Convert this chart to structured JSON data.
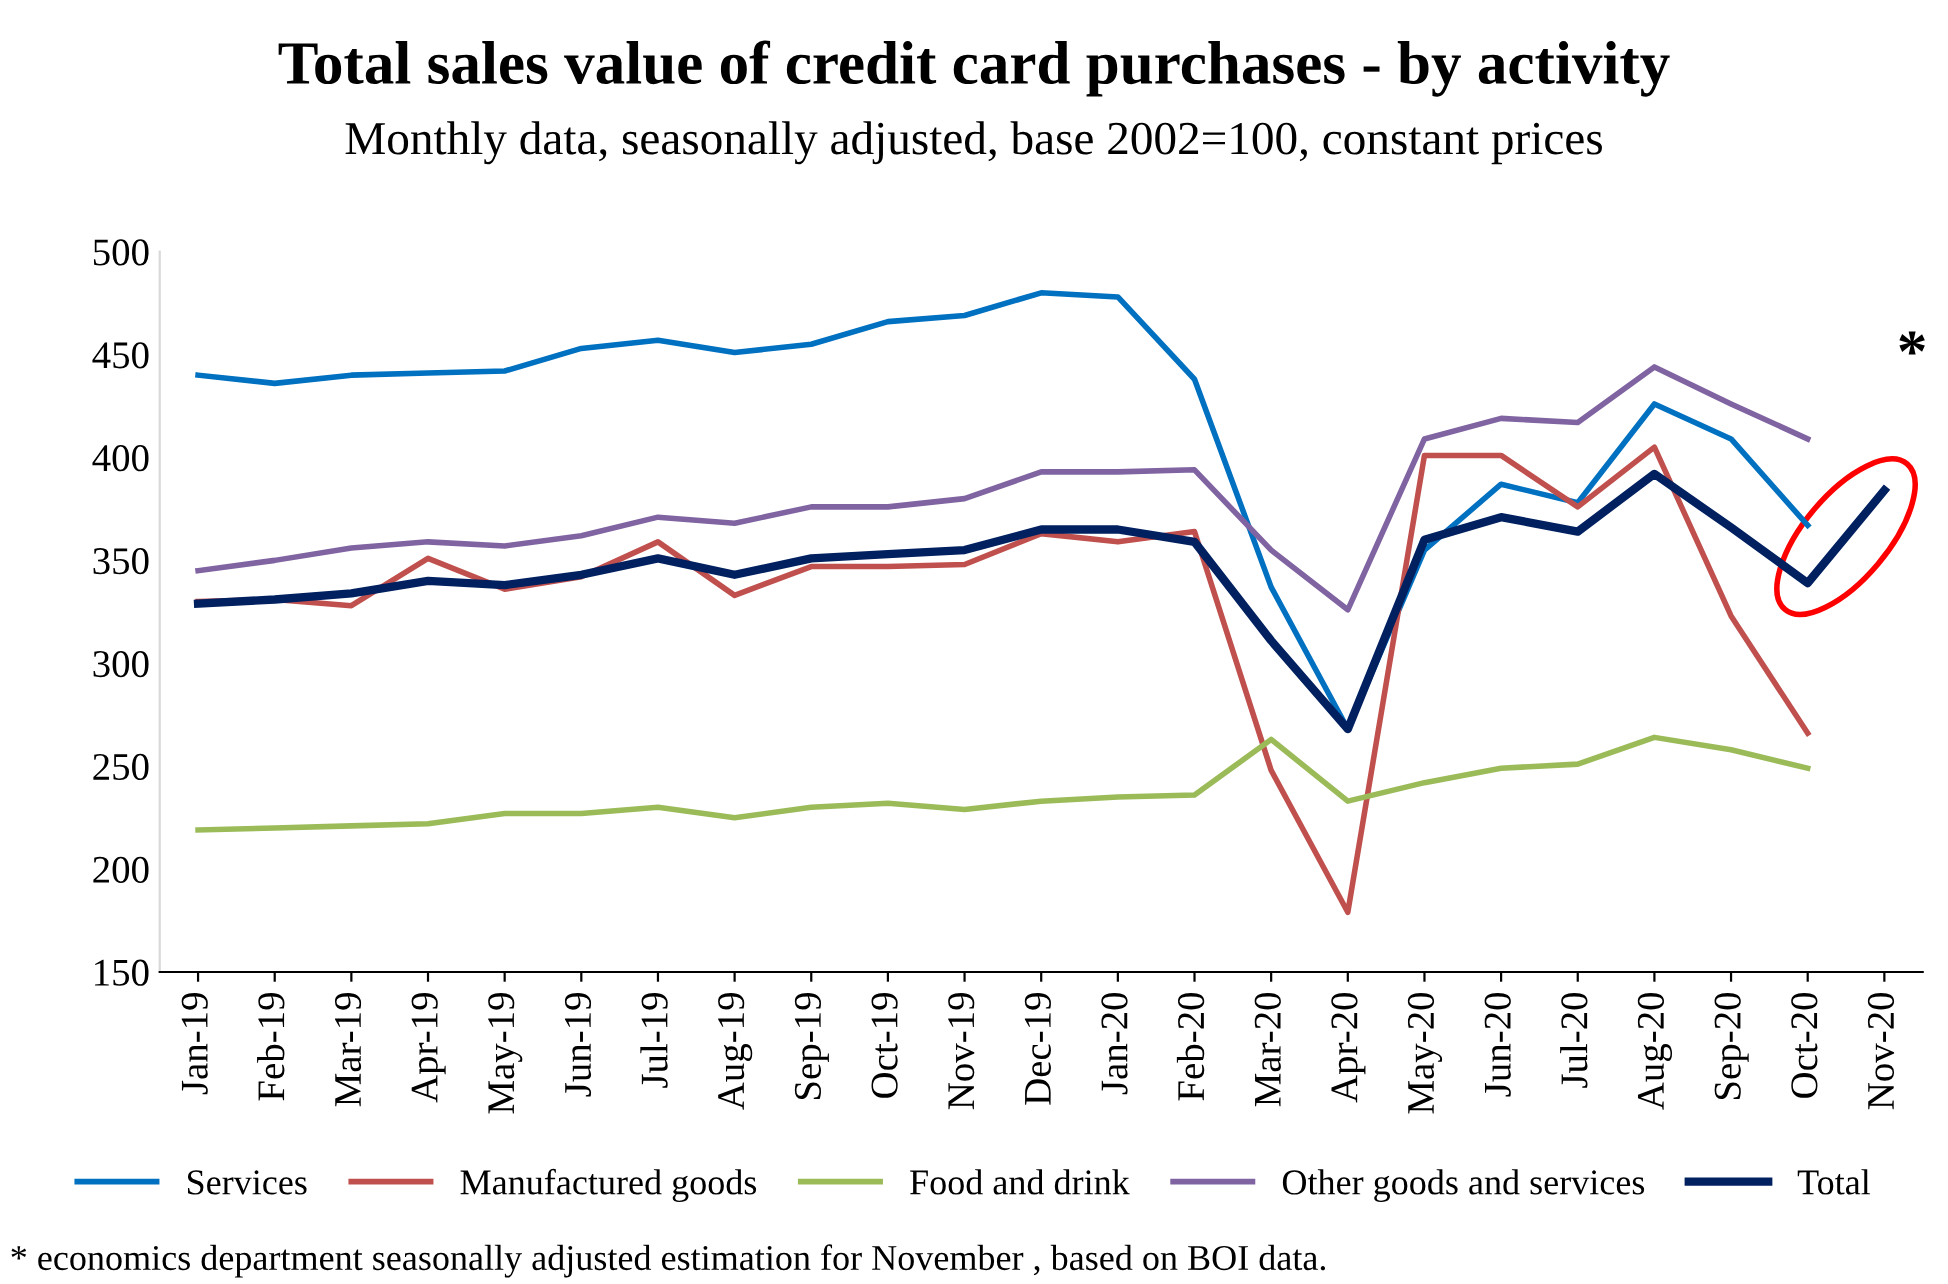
{
  "chart_data": {
    "type": "line",
    "title": "Total sales value of credit card purchases - by activity",
    "subtitle": "Monthly data, seasonally adjusted, base 2002=100, constant prices",
    "categories": [
      "Jan-19",
      "Feb-19",
      "Mar-19",
      "Apr-19",
      "May-19",
      "Jun-19",
      "Jul-19",
      "Aug-19",
      "Sep-19",
      "Oct-19",
      "Nov-19",
      "Dec-19",
      "Jan-20",
      "Feb-20",
      "Mar-20",
      "Apr-20",
      "May-20",
      "Jun-20",
      "Jul-20",
      "Aug-20",
      "Sep-20",
      "Oct-20",
      "Nov-20"
    ],
    "series": [
      {
        "name": "Services",
        "color": "#0070c0",
        "values": [
          440,
          436,
          440,
          441,
          442,
          453,
          457,
          451,
          455,
          466,
          469,
          480,
          478,
          438,
          337,
          268,
          355,
          387,
          378,
          426,
          409,
          367,
          null
        ]
      },
      {
        "name": "Manufactured goods",
        "color": "#c0504d",
        "values": [
          330,
          331,
          328,
          351,
          336,
          342,
          359,
          333,
          347,
          347,
          348,
          363,
          359,
          364,
          248,
          179,
          401,
          401,
          376,
          405,
          323,
          266,
          null
        ]
      },
      {
        "name": "Food and drink",
        "color": "#9bbb59",
        "values": [
          219,
          220,
          221,
          222,
          227,
          227,
          230,
          225,
          230,
          232,
          229,
          233,
          235,
          236,
          263,
          233,
          242,
          249,
          251,
          264,
          258,
          249,
          null
        ]
      },
      {
        "name": "Other goods and services",
        "color": "#8064a2",
        "values": [
          345,
          350,
          356,
          359,
          357,
          362,
          371,
          368,
          376,
          376,
          380,
          393,
          393,
          394,
          355,
          326,
          409,
          419,
          417,
          444,
          426,
          409,
          null
        ]
      },
      {
        "name": "Total",
        "color": "#002060",
        "values": [
          329,
          331,
          334,
          340,
          338,
          343,
          351,
          343,
          351,
          353,
          355,
          365,
          365,
          359,
          311,
          268,
          360,
          371,
          364,
          392,
          366,
          339,
          384
        ]
      }
    ],
    "ylim": [
      150,
      500
    ],
    "yticks": [
      150,
      200,
      250,
      300,
      350,
      400,
      450,
      500
    ],
    "grid": false,
    "legend": "bottom",
    "marker": "none",
    "line_style": "solid",
    "annotations": [
      "*",
      "* economics department seasonally adjusted estimation for November , based on BOI data."
    ]
  }
}
